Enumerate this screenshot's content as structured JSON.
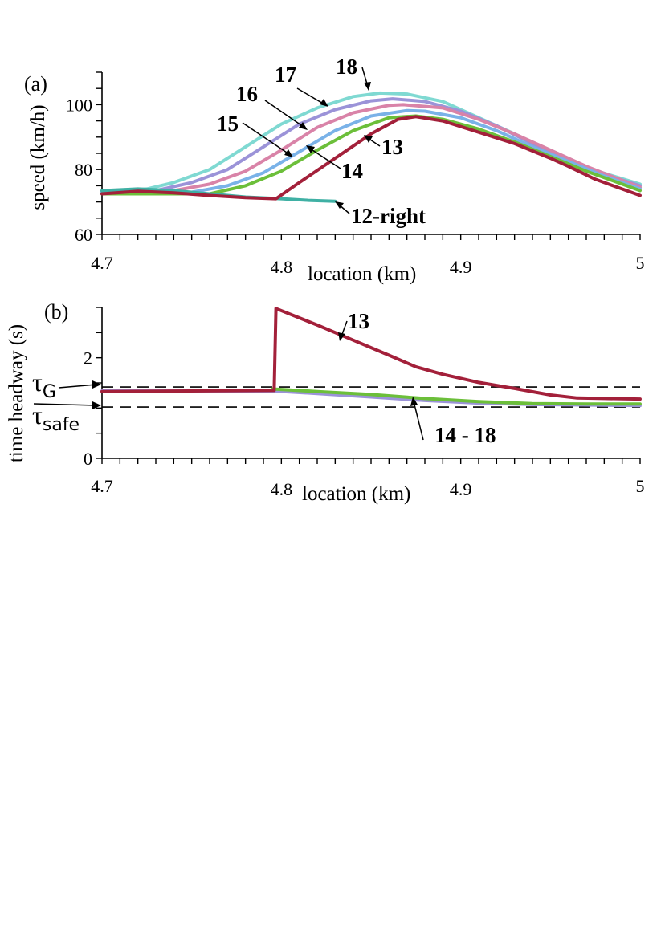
{
  "chart_data": [
    {
      "type": "line",
      "panel_label": "(a)",
      "xlabel": "location (km)",
      "ylabel": "speed (km/h)",
      "xlim": [
        4.7,
        5.0
      ],
      "ylim": [
        60,
        110
      ],
      "x_ticks": [
        {
          "value": 4.7,
          "label": "4.7"
        },
        {
          "value": 4.8,
          "label": "4.8"
        },
        {
          "value": 4.9,
          "label": "4.9"
        },
        {
          "value": 5.0,
          "label": "5"
        }
      ],
      "y_ticks": [
        {
          "value": 60,
          "label": "60"
        },
        {
          "value": 80,
          "label": "80"
        },
        {
          "value": 100,
          "label": "100"
        }
      ],
      "series": [
        {
          "name": "18",
          "color": "#7fd9d2",
          "points": [
            [
              4.7,
              73
            ],
            [
              4.725,
              74
            ],
            [
              4.74,
              76
            ],
            [
              4.76,
              80
            ],
            [
              4.78,
              87
            ],
            [
              4.8,
              94
            ],
            [
              4.82,
              99
            ],
            [
              4.84,
              102.5
            ],
            [
              4.855,
              103.6
            ],
            [
              4.87,
              103.3
            ],
            [
              4.89,
              101
            ],
            [
              4.91,
              96
            ],
            [
              4.93,
              91
            ],
            [
              4.95,
              85.5
            ],
            [
              4.97,
              80.5
            ],
            [
              5.0,
              75.5
            ]
          ]
        },
        {
          "name": "17",
          "color": "#9b93d8",
          "points": [
            [
              4.7,
              73
            ],
            [
              4.73,
              73.5
            ],
            [
              4.75,
              76
            ],
            [
              4.77,
              80
            ],
            [
              4.79,
              87
            ],
            [
              4.81,
              94
            ],
            [
              4.83,
              98.5
            ],
            [
              4.85,
              101.2
            ],
            [
              4.862,
              101.8
            ],
            [
              4.88,
              101
            ],
            [
              4.9,
              98
            ],
            [
              4.92,
              93.5
            ],
            [
              4.94,
              88
            ],
            [
              4.96,
              83
            ],
            [
              4.98,
              78.5
            ],
            [
              5.0,
              75
            ]
          ]
        },
        {
          "name": "16",
          "color": "#d983a8",
          "points": [
            [
              4.7,
              73
            ],
            [
              4.74,
              73.5
            ],
            [
              4.76,
              75.5
            ],
            [
              4.78,
              79.5
            ],
            [
              4.8,
              86
            ],
            [
              4.82,
              93
            ],
            [
              4.84,
              97.5
            ],
            [
              4.86,
              99.8
            ],
            [
              4.868,
              100
            ],
            [
              4.89,
              99
            ],
            [
              4.91,
              95.5
            ],
            [
              4.93,
              91
            ],
            [
              4.95,
              86
            ],
            [
              4.97,
              81
            ],
            [
              5.0,
              74.5
            ]
          ]
        },
        {
          "name": "15",
          "color": "#7ab2e8",
          "points": [
            [
              4.7,
              73
            ],
            [
              4.75,
              73
            ],
            [
              4.77,
              75
            ],
            [
              4.79,
              79
            ],
            [
              4.81,
              85.5
            ],
            [
              4.83,
              92
            ],
            [
              4.85,
              96.5
            ],
            [
              4.87,
              98.2
            ],
            [
              4.88,
              98
            ],
            [
              4.9,
              96
            ],
            [
              4.92,
              92
            ],
            [
              4.94,
              87
            ],
            [
              4.96,
              82.5
            ],
            [
              4.98,
              78
            ],
            [
              5.0,
              74
            ]
          ]
        },
        {
          "name": "14",
          "color": "#6cbf3a",
          "points": [
            [
              4.7,
              72.5
            ],
            [
              4.76,
              72.5
            ],
            [
              4.78,
              75
            ],
            [
              4.8,
              79.5
            ],
            [
              4.82,
              86
            ],
            [
              4.84,
              92
            ],
            [
              4.86,
              96
            ],
            [
              4.875,
              96.5
            ],
            [
              4.89,
              95.5
            ],
            [
              4.91,
              92.5
            ],
            [
              4.93,
              88.5
            ],
            [
              4.95,
              84
            ],
            [
              4.97,
              79.5
            ],
            [
              5.0,
              73.5
            ]
          ]
        },
        {
          "name": "12-right",
          "color": "#3fb0a4",
          "points": [
            [
              4.7,
              73.5
            ],
            [
              4.72,
              74
            ],
            [
              4.74,
              73.5
            ],
            [
              4.76,
              72.5
            ],
            [
              4.78,
              71.5
            ],
            [
              4.8,
              71
            ],
            [
              4.815,
              70.5
            ],
            [
              4.83,
              70.2
            ]
          ]
        },
        {
          "name": "13",
          "color": "#a3203a",
          "points": [
            [
              4.7,
              72.5
            ],
            [
              4.72,
              73.3
            ],
            [
              4.74,
              72.8
            ],
            [
              4.76,
              72
            ],
            [
              4.78,
              71.3
            ],
            [
              4.797,
              71
            ],
            [
              4.81,
              76
            ],
            [
              4.83,
              83.5
            ],
            [
              4.85,
              91
            ],
            [
              4.865,
              95.5
            ],
            [
              4.875,
              96.3
            ],
            [
              4.89,
              95
            ],
            [
              4.91,
              91.5
            ],
            [
              4.93,
              88
            ],
            [
              4.95,
              83.5
            ],
            [
              4.96,
              81
            ],
            [
              4.975,
              77
            ],
            [
              5.0,
              72
            ]
          ]
        }
      ],
      "annotations": [
        "18",
        "17",
        "16",
        "15",
        "14",
        "13",
        "12-right"
      ]
    },
    {
      "type": "line",
      "panel_label": "(b)",
      "xlabel": "location (km)",
      "ylabel": "time headway (s)",
      "xlim": [
        4.7,
        5.0
      ],
      "ylim": [
        0,
        3
      ],
      "x_ticks": [
        {
          "value": 4.7,
          "label": "4.7"
        },
        {
          "value": 4.8,
          "label": "4.8"
        },
        {
          "value": 4.9,
          "label": "4.9"
        },
        {
          "value": 5.0,
          "label": "5"
        }
      ],
      "y_ticks": [
        {
          "value": 0,
          "label": "0"
        },
        {
          "value": 2,
          "label": "2"
        }
      ],
      "reference_lines": [
        {
          "name": "tau_G",
          "symbol": "τ",
          "subscript": "G",
          "value": 1.42
        },
        {
          "name": "tau_safe",
          "symbol": "τ",
          "subscript": "safe",
          "value": 1.02
        }
      ],
      "series": [
        {
          "name": "14 - 18",
          "color": "#9b93d8",
          "points": [
            [
              4.7,
              1.34
            ],
            [
              4.795,
              1.34
            ],
            [
              4.82,
              1.29
            ],
            [
              4.85,
              1.22
            ],
            [
              4.88,
              1.15
            ],
            [
              4.91,
              1.1
            ],
            [
              4.94,
              1.07
            ],
            [
              5.0,
              1.05
            ]
          ]
        },
        {
          "name": "14 - 18 (green)",
          "color": "#6cbf3a",
          "points": [
            [
              4.795,
              1.38
            ],
            [
              4.82,
              1.33
            ],
            [
              4.85,
              1.27
            ],
            [
              4.88,
              1.19
            ],
            [
              4.91,
              1.13
            ],
            [
              4.94,
              1.09
            ],
            [
              4.97,
              1.08
            ],
            [
              5.0,
              1.08
            ]
          ]
        },
        {
          "name": "13",
          "color": "#a3203a",
          "points": [
            [
              4.7,
              1.33
            ],
            [
              4.796,
              1.35
            ],
            [
              4.797,
              2.98
            ],
            [
              4.82,
              2.65
            ],
            [
              4.84,
              2.35
            ],
            [
              4.86,
              2.05
            ],
            [
              4.875,
              1.82
            ],
            [
              4.89,
              1.67
            ],
            [
              4.91,
              1.51
            ],
            [
              4.93,
              1.39
            ],
            [
              4.95,
              1.26
            ],
            [
              4.965,
              1.2
            ],
            [
              4.98,
              1.19
            ],
            [
              5.0,
              1.18
            ]
          ]
        }
      ],
      "annotations": [
        "13",
        "14 - 18"
      ]
    }
  ]
}
